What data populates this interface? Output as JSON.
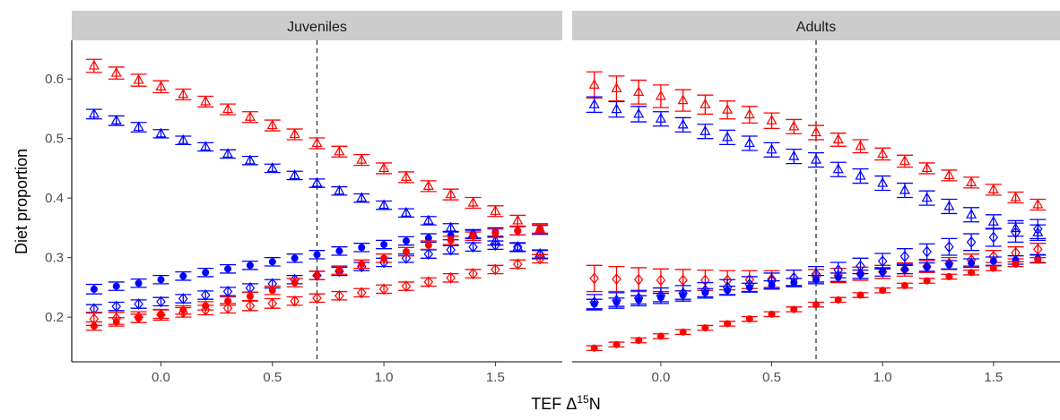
{
  "chart_data": {
    "type": "scatter",
    "title": "",
    "xlabel": "TEF Δ",
    "xlabel_superscript": "15",
    "xlabel_suffix": "N",
    "ylabel": "Diet proportion",
    "xlim": [
      -0.4,
      1.8
    ],
    "ylim": [
      0.125,
      0.665
    ],
    "xticks": [
      0.0,
      0.5,
      1.0,
      1.5
    ],
    "xtick_labels": [
      "0.0",
      "0.5",
      "1.0",
      "1.5"
    ],
    "yticks": [
      0.2,
      0.3,
      0.4,
      0.5,
      0.6
    ],
    "ytick_labels": [
      "0.2",
      "0.3",
      "0.4",
      "0.5",
      "0.6"
    ],
    "reference_line_x": 0.7,
    "grid": false,
    "legend": "none",
    "colors": {
      "red": "#ff0000",
      "blue": "#0000ff"
    },
    "x": [
      -0.3,
      -0.2,
      -0.1,
      0.0,
      0.1,
      0.2,
      0.3,
      0.4,
      0.5,
      0.6,
      0.7,
      0.8,
      0.9,
      1.0,
      1.1,
      1.2,
      1.3,
      1.4,
      1.5,
      1.6,
      1.7
    ],
    "panels": [
      {
        "label": "Juveniles",
        "series": [
          {
            "color": "red",
            "shape": "triangle",
            "values": [
              0.622,
              0.61,
              0.598,
              0.587,
              0.574,
              0.562,
              0.549,
              0.536,
              0.522,
              0.507,
              0.492,
              0.478,
              0.464,
              0.45,
              0.435,
              0.42,
              0.406,
              0.392,
              0.378,
              0.362,
              0.348
            ],
            "errors": [
              0.011,
              0.01,
              0.01,
              0.01,
              0.009,
              0.009,
              0.009,
              0.009,
              0.009,
              0.009,
              0.009,
              0.009,
              0.009,
              0.009,
              0.009,
              0.009,
              0.009,
              0.009,
              0.009,
              0.009,
              0.009
            ]
          },
          {
            "color": "blue",
            "shape": "triangle",
            "values": [
              0.541,
              0.53,
              0.519,
              0.508,
              0.497,
              0.486,
              0.474,
              0.463,
              0.45,
              0.438,
              0.425,
              0.412,
              0.4,
              0.388,
              0.375,
              0.362,
              0.35,
              0.339,
              0.328,
              0.317,
              0.306
            ],
            "errors": [
              0.008,
              0.008,
              0.008,
              0.007,
              0.007,
              0.007,
              0.007,
              0.007,
              0.007,
              0.007,
              0.007,
              0.007,
              0.007,
              0.007,
              0.007,
              0.007,
              0.007,
              0.007,
              0.007,
              0.007,
              0.007
            ]
          },
          {
            "color": "blue",
            "shape": "filled-circle",
            "values": [
              0.247,
              0.252,
              0.257,
              0.263,
              0.269,
              0.275,
              0.281,
              0.287,
              0.293,
              0.299,
              0.305,
              0.311,
              0.317,
              0.322,
              0.328,
              0.333,
              0.337,
              0.34,
              0.343,
              0.345,
              0.347
            ],
            "errors": [
              0.008,
              0.007,
              0.007,
              0.007,
              0.007,
              0.007,
              0.007,
              0.007,
              0.007,
              0.007,
              0.007,
              0.007,
              0.007,
              0.007,
              0.007,
              0.007,
              0.007,
              0.007,
              0.007,
              0.007,
              0.007
            ]
          },
          {
            "color": "blue",
            "shape": "diamond",
            "values": [
              0.214,
              0.218,
              0.222,
              0.226,
              0.231,
              0.237,
              0.243,
              0.249,
              0.256,
              0.263,
              0.27,
              0.277,
              0.285,
              0.292,
              0.299,
              0.306,
              0.313,
              0.318,
              0.321,
              0.318,
              0.305
            ],
            "errors": [
              0.007,
              0.007,
              0.007,
              0.007,
              0.007,
              0.007,
              0.007,
              0.007,
              0.007,
              0.007,
              0.007,
              0.007,
              0.007,
              0.007,
              0.007,
              0.007,
              0.007,
              0.007,
              0.007,
              0.007,
              0.007
            ]
          },
          {
            "color": "red",
            "shape": "diamond",
            "values": [
              0.197,
              0.198,
              0.2,
              0.204,
              0.208,
              0.212,
              0.215,
              0.219,
              0.223,
              0.227,
              0.232,
              0.236,
              0.241,
              0.247,
              0.252,
              0.259,
              0.266,
              0.273,
              0.28,
              0.289,
              0.298
            ],
            "errors": [
              0.011,
              0.01,
              0.009,
              0.009,
              0.008,
              0.008,
              0.008,
              0.008,
              0.008,
              0.007,
              0.007,
              0.007,
              0.007,
              0.007,
              0.007,
              0.007,
              0.007,
              0.007,
              0.007,
              0.007,
              0.007
            ]
          },
          {
            "color": "red",
            "shape": "filled-circle",
            "values": [
              0.185,
              0.192,
              0.198,
              0.205,
              0.212,
              0.219,
              0.227,
              0.235,
              0.245,
              0.258,
              0.27,
              0.279,
              0.289,
              0.299,
              0.31,
              0.321,
              0.329,
              0.336,
              0.341,
              0.345,
              0.348
            ],
            "errors": [
              0.007,
              0.007,
              0.007,
              0.007,
              0.007,
              0.007,
              0.007,
              0.007,
              0.007,
              0.007,
              0.007,
              0.007,
              0.007,
              0.007,
              0.007,
              0.007,
              0.007,
              0.007,
              0.007,
              0.007,
              0.007
            ]
          }
        ]
      },
      {
        "label": "Adults",
        "series": [
          {
            "color": "red",
            "shape": "triangle",
            "values": [
              0.59,
              0.584,
              0.578,
              0.571,
              0.564,
              0.557,
              0.548,
              0.54,
              0.53,
              0.52,
              0.51,
              0.498,
              0.487,
              0.474,
              0.462,
              0.45,
              0.438,
              0.426,
              0.414,
              0.401,
              0.389
            ],
            "errors": [
              0.022,
              0.021,
              0.02,
              0.019,
              0.018,
              0.016,
              0.015,
              0.014,
              0.013,
              0.012,
              0.012,
              0.011,
              0.011,
              0.01,
              0.01,
              0.009,
              0.009,
              0.009,
              0.009,
              0.009,
              0.009
            ]
          },
          {
            "color": "blue",
            "shape": "triangle",
            "values": [
              0.557,
              0.549,
              0.541,
              0.533,
              0.523,
              0.512,
              0.502,
              0.492,
              0.481,
              0.47,
              0.464,
              0.448,
              0.437,
              0.425,
              0.413,
              0.4,
              0.386,
              0.372,
              0.36,
              0.349,
              0.342
            ],
            "errors": [
              0.013,
              0.013,
              0.013,
              0.012,
              0.012,
              0.012,
              0.012,
              0.012,
              0.012,
              0.012,
              0.012,
              0.012,
              0.012,
              0.012,
              0.012,
              0.012,
              0.012,
              0.012,
              0.012,
              0.013,
              0.013
            ]
          },
          {
            "color": "red",
            "shape": "diamond",
            "values": [
              0.265,
              0.264,
              0.263,
              0.262,
              0.262,
              0.262,
              0.262,
              0.263,
              0.264,
              0.266,
              0.268,
              0.27,
              0.273,
              0.276,
              0.28,
              0.285,
              0.29,
              0.296,
              0.302,
              0.308,
              0.314
            ],
            "errors": [
              0.022,
              0.021,
              0.02,
              0.019,
              0.018,
              0.017,
              0.016,
              0.015,
              0.014,
              0.013,
              0.012,
              0.012,
              0.011,
              0.011,
              0.011,
              0.01,
              0.01,
              0.01,
              0.01,
              0.01,
              0.01
            ]
          },
          {
            "color": "blue",
            "shape": "diamond",
            "values": [
              0.225,
              0.228,
              0.232,
              0.236,
              0.24,
              0.245,
              0.25,
              0.255,
              0.261,
              0.266,
              0.272,
              0.279,
              0.286,
              0.294,
              0.302,
              0.31,
              0.318,
              0.326,
              0.334,
              0.342,
              0.348
            ],
            "errors": [
              0.013,
              0.013,
              0.013,
              0.013,
              0.013,
              0.013,
              0.013,
              0.013,
              0.013,
              0.013,
              0.013,
              0.013,
              0.013,
              0.013,
              0.013,
              0.013,
              0.014,
              0.014,
              0.015,
              0.016,
              0.016
            ]
          },
          {
            "color": "blue",
            "shape": "filled-circle",
            "values": [
              0.222,
              0.225,
              0.229,
              0.233,
              0.237,
              0.241,
              0.245,
              0.25,
              0.254,
              0.258,
              0.263,
              0.267,
              0.272,
              0.276,
              0.28,
              0.284,
              0.288,
              0.291,
              0.294,
              0.296,
              0.298
            ],
            "errors": [
              0.008,
              0.007,
              0.007,
              0.007,
              0.007,
              0.007,
              0.007,
              0.007,
              0.007,
              0.007,
              0.007,
              0.007,
              0.007,
              0.007,
              0.007,
              0.007,
              0.007,
              0.007,
              0.007,
              0.007,
              0.007
            ]
          },
          {
            "color": "red",
            "shape": "filled-circle",
            "values": [
              0.148,
              0.154,
              0.161,
              0.168,
              0.175,
              0.182,
              0.189,
              0.197,
              0.205,
              0.213,
              0.221,
              0.229,
              0.237,
              0.245,
              0.253,
              0.261,
              0.268,
              0.275,
              0.282,
              0.289,
              0.296
            ],
            "errors": [
              0.004,
              0.004,
              0.004,
              0.004,
              0.004,
              0.004,
              0.004,
              0.004,
              0.004,
              0.004,
              0.004,
              0.004,
              0.004,
              0.004,
              0.004,
              0.004,
              0.004,
              0.004,
              0.004,
              0.004,
              0.004
            ]
          }
        ]
      }
    ]
  }
}
